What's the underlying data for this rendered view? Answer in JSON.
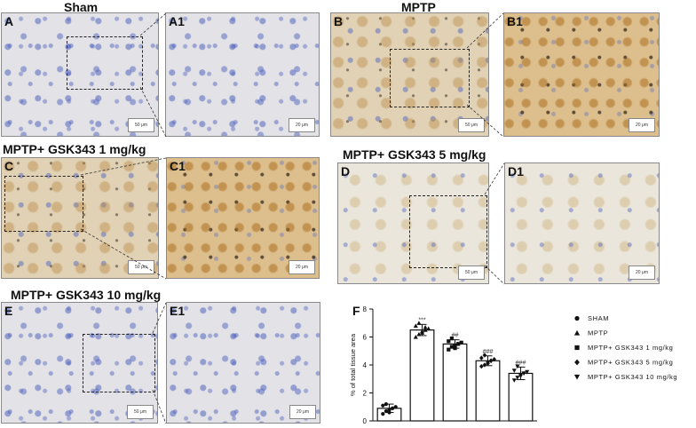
{
  "groups": {
    "sham": "Sham",
    "mptp": "MPTP",
    "gsk1": "MPTP+ GSK343 1 mg/kg",
    "gsk5": "MPTP+ GSK343 5 mg/kg",
    "gsk10": "MPTP+ GSK343 10 mg/kg"
  },
  "panels": {
    "A": "A",
    "A1": "A1",
    "B": "B",
    "B1": "B1",
    "C": "C",
    "C1": "C1",
    "D": "D",
    "D1": "D1",
    "E": "E",
    "E1": "E1",
    "F": "F"
  },
  "scalebars": {
    "large": "50 μm",
    "small": "20 μm"
  },
  "chart_data": {
    "type": "bar",
    "panel_label": "F",
    "ylabel": "% of total tissue area",
    "ylim": [
      0,
      8
    ],
    "yticks": [
      0,
      2,
      4,
      6,
      8
    ],
    "categories": [
      "SHAM",
      "MPTP",
      "MPTP+ GSK343 1 mg/kg",
      "MPTP+ GSK343 5 mg/kg",
      "MPTP+ GSK343 10 mg/kg"
    ],
    "values": [
      0.9,
      6.5,
      5.5,
      4.3,
      3.4
    ],
    "errors": [
      0.3,
      0.4,
      0.3,
      0.35,
      0.45
    ],
    "markers": [
      "circle",
      "triangle-up",
      "square",
      "diamond",
      "triangle-down"
    ],
    "significance": [
      "",
      "***",
      "##",
      "###",
      "###"
    ],
    "points": [
      [
        0.5,
        0.7,
        0.8,
        0.9,
        1.0,
        1.1,
        1.2,
        0.6,
        0.9
      ],
      [
        6.0,
        6.2,
        6.4,
        6.5,
        6.6,
        6.8,
        7.0,
        6.3,
        6.7
      ],
      [
        5.1,
        5.3,
        5.4,
        5.5,
        5.6,
        5.7,
        5.9,
        5.2,
        5.5
      ],
      [
        3.9,
        4.0,
        4.2,
        4.3,
        4.4,
        4.5,
        4.7,
        4.1,
        4.3
      ],
      [
        2.9,
        3.1,
        3.3,
        3.4,
        3.5,
        3.6,
        3.9,
        3.2,
        3.4
      ]
    ],
    "legend_position": "right",
    "grid": false
  }
}
